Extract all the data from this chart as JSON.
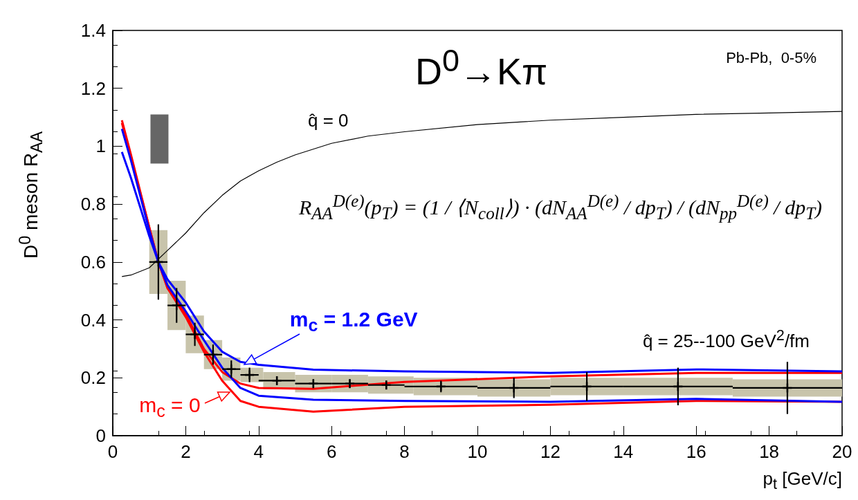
{
  "chart_data": {
    "type": "line",
    "title": "D$^{0}$→Kπ",
    "xlabel": "p$_{t}$ [GeV/c]",
    "ylabel": "D$^{0}$ meson R$_{AA}$",
    "xlim": [
      0,
      20
    ],
    "xticks": [
      0,
      2,
      4,
      6,
      8,
      10,
      12,
      14,
      16,
      18,
      20
    ],
    "ylim": [
      0,
      1.4
    ],
    "yticks": [
      0,
      0.2,
      0.4,
      0.6,
      0.8,
      1,
      1.2,
      1.4
    ],
    "grid": false,
    "annotations": [
      "Pb-Pb,  0-5%",
      "R$_{AA}$$^{D(e)}$(p$_{T}$) = (1 / ⟨N$_{coll}$⟩) · (dN$_{AA}$$^{D(e)}$ / dp$_{T}$) / (dN$_{pp}$$^{D(e)}$ / dp$_{T}$)",
      "q̂ = 0",
      "q̂ = 25--100 GeV$^{2}$/fm",
      {
        "text": "m$_{c}$ = 1.2 GeV",
        "x": 3.6,
        "y": 0.245
      },
      {
        "text": "m$_{c}$ = 0",
        "x": 3.2,
        "y": 0.15
      }
    ],
    "series": [
      {
        "type": "bar",
        "color": "#666666",
        "x": [
          1.28
        ],
        "base": [
          0.94
        ],
        "values": [
          0.17
        ]
      },
      {
        "type": "bar",
        "color": "#c8c4ab",
        "x": [
          1.25,
          1.75,
          2.25,
          2.75,
          3.25,
          3.75,
          4.5,
          5.5,
          6.5,
          7.5,
          9,
          11,
          13,
          15.5,
          18.5
        ],
        "base": [
          0.49,
          0.365,
          0.285,
          0.23,
          0.19,
          0.185,
          0.16,
          0.15,
          0.15,
          0.145,
          0.14,
          0.135,
          0.14,
          0.14,
          0.135
        ],
        "values": [
          0.22,
          0.17,
          0.13,
          0.1,
          0.08,
          0.05,
          0.06,
          0.06,
          0.06,
          0.06,
          0.06,
          0.06,
          0.06,
          0.06,
          0.06
        ]
      },
      {
        "color": "#000000",
        "x": [
          0.25,
          0.5,
          1,
          1.5,
          2,
          2.5,
          3,
          3.5,
          4,
          4.5,
          5,
          6,
          7,
          8,
          10,
          12,
          14,
          16,
          18,
          20
        ],
        "values": [
          0.55,
          0.555,
          0.58,
          0.64,
          0.7,
          0.77,
          0.83,
          0.88,
          0.915,
          0.945,
          0.97,
          1.01,
          1.035,
          1.05,
          1.075,
          1.09,
          1.1,
          1.11,
          1.115,
          1.12
        ]
      },
      {
        "color": "#ff0000",
        "x": [
          0.25,
          0.5,
          1,
          1.25,
          1.5,
          2,
          2.5,
          3,
          3.5,
          4,
          5.5,
          8,
          12,
          16,
          20
        ],
        "values": [
          1.09,
          0.97,
          0.72,
          0.6,
          0.51,
          0.41,
          0.29,
          0.19,
          0.12,
          0.1,
          0.083,
          0.1,
          0.107,
          0.12,
          0.117
        ]
      },
      {
        "color": "#ff0000",
        "x": [
          0.25,
          0.5,
          1,
          1.25,
          1.5,
          2,
          2.5,
          3,
          3.5,
          4,
          5.5,
          8,
          12,
          16,
          20
        ],
        "values": [
          1.08,
          0.96,
          0.72,
          0.6,
          0.51,
          0.42,
          0.3,
          0.22,
          0.18,
          0.165,
          0.162,
          0.186,
          0.205,
          0.217,
          0.217
        ]
      },
      {
        "color": "#0000ff",
        "x": [
          0.25,
          0.5,
          1,
          1.25,
          1.5,
          2,
          2.5,
          3,
          3.5,
          4,
          5.5,
          8,
          12,
          16,
          20
        ],
        "values": [
          1.06,
          0.95,
          0.71,
          0.6,
          0.52,
          0.43,
          0.33,
          0.235,
          0.165,
          0.138,
          0.124,
          0.12,
          0.117,
          0.127,
          0.117
        ]
      },
      {
        "color": "#0000ff",
        "x": [
          0.25,
          0.5,
          1,
          1.25,
          1.5,
          2,
          2.5,
          3,
          3.5,
          4,
          5.5,
          8,
          12,
          16,
          20
        ],
        "values": [
          0.98,
          0.89,
          0.69,
          0.6,
          0.54,
          0.46,
          0.36,
          0.29,
          0.255,
          0.245,
          0.228,
          0.222,
          0.217,
          0.229,
          0.222
        ]
      },
      {
        "type": "scatter",
        "marker": "cross",
        "color": "#000000",
        "x": [
          1.25,
          1.75,
          2.25,
          2.75,
          3.25,
          3.75,
          4.5,
          5.5,
          6.5,
          7.5,
          9,
          11,
          13,
          15.5,
          18.5
        ],
        "values": [
          0.6,
          0.45,
          0.35,
          0.28,
          0.23,
          0.21,
          0.19,
          0.18,
          0.18,
          0.175,
          0.17,
          0.165,
          0.17,
          0.17,
          0.165
        ],
        "errors": [
          0.13,
          0.06,
          0.04,
          0.035,
          0.03,
          0.025,
          0.015,
          0.015,
          0.015,
          0.015,
          0.02,
          0.035,
          0.05,
          0.065,
          0.09
        ],
        "xerrors": [
          0.25,
          0.25,
          0.25,
          0.25,
          0.25,
          0.25,
          0.5,
          0.5,
          0.5,
          0.5,
          1,
          1,
          1,
          1.5,
          1.5
        ]
      }
    ]
  }
}
